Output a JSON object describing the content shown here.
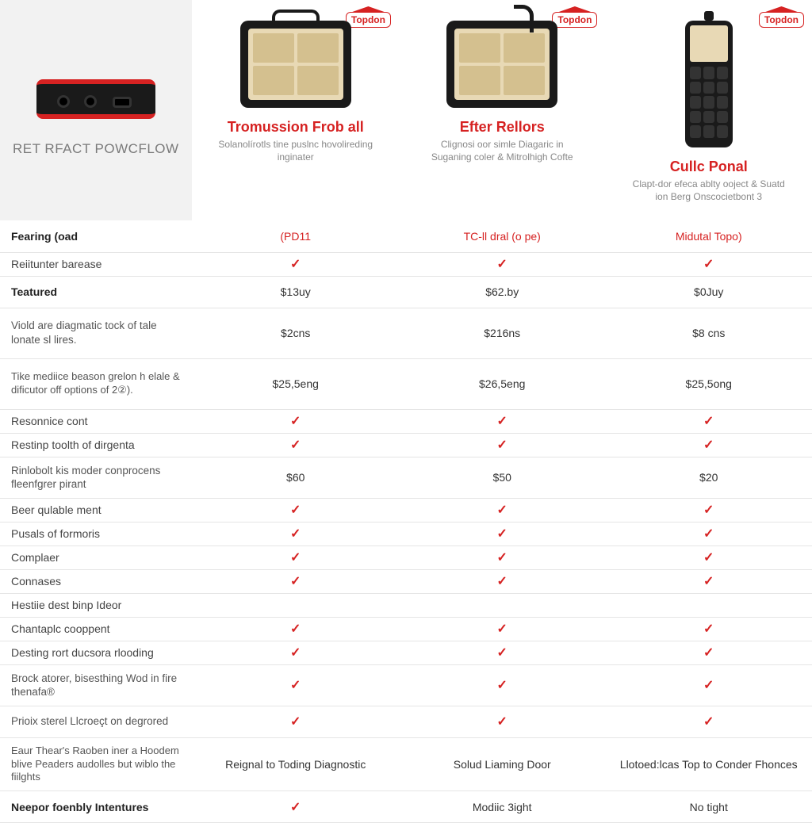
{
  "header": {
    "title": "RET RFACT POWCFLOW",
    "brand": "Topdon"
  },
  "products": [
    {
      "name": "Tromussion Frob all",
      "sub": "Solanolírotls tine puslnc hovolireding inginater"
    },
    {
      "name": "Efter Rellors",
      "sub": "Clignosi oor simle Diagaric in Suganing coler & Mitrolhigh Cofte"
    },
    {
      "name": "Cullc Ponal",
      "sub": "Clapt-dor efeca ablty ooject & Suatd ion Berg Onscocietbont 3"
    }
  ],
  "rows": [
    {
      "label": "Fearing (oad",
      "bold": true,
      "h": "med",
      "cells": [
        {
          "text": "(PD11",
          "red": true
        },
        {
          "text": "TC-ll dral (o pe)",
          "red": true
        },
        {
          "text": "Midutal Topo)",
          "red": true
        }
      ]
    },
    {
      "label": "Reiitunter barease",
      "h": "short",
      "cells": [
        {
          "check": true
        },
        {
          "check": true
        },
        {
          "check": true
        }
      ]
    },
    {
      "label": "Teatured",
      "bold": true,
      "h": "med",
      "cells": [
        {
          "text": "$13uy"
        },
        {
          "text": "$62.by"
        },
        {
          "text": "$0Juy"
        }
      ]
    },
    {
      "label": "Viold are diagmatic tock of tale lonate sl lires.",
      "two": true,
      "h": "tall",
      "cells": [
        {
          "text": "$2cns"
        },
        {
          "text": "$216ns"
        },
        {
          "text": "$8 cns"
        }
      ]
    },
    {
      "label": "Tike mediice beason grelon h elale & dificutor off options of 2②).",
      "three": true,
      "h": "tall",
      "cells": [
        {
          "text": "$25,5eng"
        },
        {
          "text": "$26,5eng"
        },
        {
          "text": "$25,5ong"
        }
      ]
    },
    {
      "label": "Resonnice cont",
      "h": "short",
      "cells": [
        {
          "check": true
        },
        {
          "check": true
        },
        {
          "check": true
        }
      ]
    },
    {
      "label": "Restinp toolth of dirgenta",
      "h": "short",
      "cells": [
        {
          "check": true
        },
        {
          "check": true
        },
        {
          "check": true
        }
      ]
    },
    {
      "label": "Rinlobolt kis moder conprocens fleenfgrer pirant",
      "two": true,
      "h": "med",
      "cells": [
        {
          "text": "$60"
        },
        {
          "text": "$50"
        },
        {
          "text": "$20"
        }
      ]
    },
    {
      "label": "Beer qulable ment",
      "h": "short",
      "cells": [
        {
          "check": true
        },
        {
          "check": true
        },
        {
          "check": true
        }
      ]
    },
    {
      "label": "Pusals of formoris",
      "h": "short",
      "cells": [
        {
          "check": true
        },
        {
          "check": true
        },
        {
          "check": true
        }
      ]
    },
    {
      "label": "Complaer",
      "h": "short",
      "cells": [
        {
          "check": true
        },
        {
          "check": true
        },
        {
          "check": true
        }
      ]
    },
    {
      "label": "Connases",
      "h": "short",
      "cells": [
        {
          "check": true
        },
        {
          "check": true
        },
        {
          "check": true
        }
      ]
    },
    {
      "label": "Hestiie dest binp Ideor",
      "h": "short",
      "cells": [
        {
          "text": ""
        },
        {
          "text": ""
        },
        {
          "text": ""
        }
      ]
    },
    {
      "label": "Chantaplc cooppent",
      "h": "short",
      "cells": [
        {
          "check": true
        },
        {
          "check": true
        },
        {
          "check": true
        }
      ]
    },
    {
      "label": "Desting rort ducsora rlooding",
      "h": "short",
      "cells": [
        {
          "check": true
        },
        {
          "check": true
        },
        {
          "check": true
        }
      ]
    },
    {
      "label": "Brock atorer, bisesthing Wod in fire thenafa®",
      "two": true,
      "h": "med",
      "cells": [
        {
          "check": true
        },
        {
          "check": true
        },
        {
          "check": true
        }
      ]
    },
    {
      "label": "Prioix sterel Llcroeçt on degrored",
      "two": true,
      "h": "med",
      "cells": [
        {
          "check": true
        },
        {
          "check": true
        },
        {
          "check": true
        }
      ]
    },
    {
      "label": "Eaur Thear's Raoben iner a Hoodem blive Peaders audolles but wiblo the fiilghts",
      "three": true,
      "h": "tall",
      "cells": [
        {
          "text": "Reignal to Toding Diagnostic"
        },
        {
          "text": "Solud Liaming Door"
        },
        {
          "text": "Llotoed:lcas Top to Conder Fhonces"
        }
      ]
    },
    {
      "label": "Neepor foenbly Intentures",
      "bold": true,
      "h": "med",
      "cells": [
        {
          "check": true
        },
        {
          "text": "Modiic 3ight"
        },
        {
          "text": "No tight"
        }
      ]
    }
  ]
}
